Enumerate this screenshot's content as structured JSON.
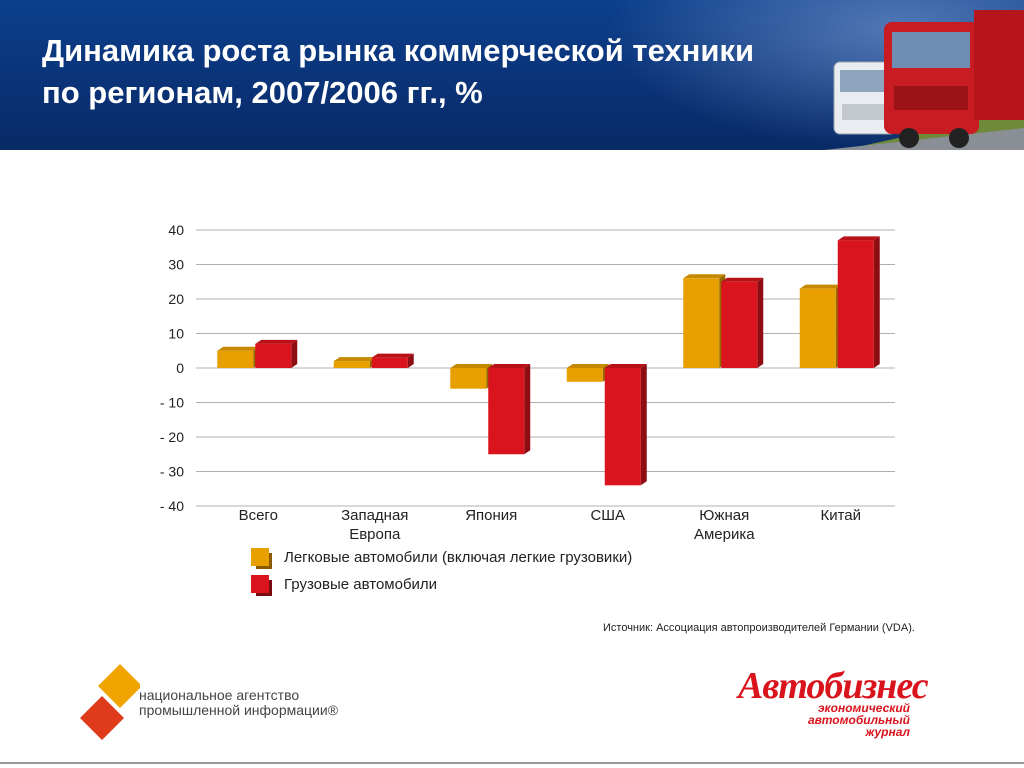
{
  "header": {
    "title_line1": "Динамика роста рынка коммерческой техники",
    "title_line2": "по регионам, 2007/2006 гг., %"
  },
  "chart_data": {
    "type": "bar",
    "title": "",
    "categories": [
      [
        "Всего"
      ],
      [
        "Западная",
        "Европа"
      ],
      [
        "Япония"
      ],
      [
        "США"
      ],
      [
        "Южная",
        "Америка"
      ],
      [
        "Китай"
      ]
    ],
    "series": [
      {
        "name": "Легковые автомобили (включая легкие грузовики)",
        "color": "#e8a000",
        "values": [
          5,
          2,
          -6,
          -4,
          26,
          23
        ]
      },
      {
        "name": "Грузовые автомобили",
        "color": "#d9141c",
        "values": [
          7,
          3,
          -25,
          -34,
          25,
          37
        ]
      }
    ],
    "ylim": [
      -40,
      40
    ],
    "yticks": [
      40,
      30,
      20,
      10,
      0,
      -10,
      -20,
      -30,
      -40
    ],
    "ytick_labels": [
      "40",
      "30",
      "20",
      "10",
      "0",
      "- 10",
      "- 20",
      "- 30",
      "- 40"
    ],
    "grid": true,
    "legend": "bottom-left"
  },
  "source": "Источник: Ассоциация автопроизводителей Германии (VDA).",
  "logos": {
    "agency_line1": "национальное агентство",
    "agency_line2": "промышленной информации®",
    "magazine": "Автобизнес",
    "magazine_sub1": "экономический",
    "magazine_sub2": "автомобильный",
    "magazine_sub3": "журнал"
  }
}
